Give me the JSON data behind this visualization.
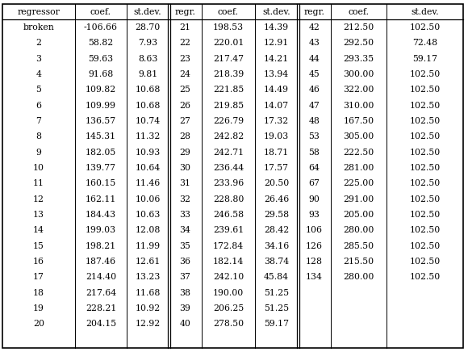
{
  "headers": [
    "regressor",
    "coef.",
    "st.dev.",
    "regr.",
    "coef.",
    "st.dev.",
    "regr.",
    "coef.",
    "st.dev."
  ],
  "col1_data": [
    [
      "broken",
      "-106.66",
      "28.70"
    ],
    [
      "2",
      "58.82",
      "7.93"
    ],
    [
      "3",
      "59.63",
      "8.63"
    ],
    [
      "4",
      "91.68",
      "9.81"
    ],
    [
      "5",
      "109.82",
      "10.68"
    ],
    [
      "6",
      "109.99",
      "10.68"
    ],
    [
      "7",
      "136.57",
      "10.74"
    ],
    [
      "8",
      "145.31",
      "11.32"
    ],
    [
      "9",
      "182.05",
      "10.93"
    ],
    [
      "10",
      "139.77",
      "10.64"
    ],
    [
      "11",
      "160.15",
      "11.46"
    ],
    [
      "12",
      "162.11",
      "10.06"
    ],
    [
      "13",
      "184.43",
      "10.63"
    ],
    [
      "14",
      "199.03",
      "12.08"
    ],
    [
      "15",
      "198.21",
      "11.99"
    ],
    [
      "16",
      "187.46",
      "12.61"
    ],
    [
      "17",
      "214.40",
      "13.23"
    ],
    [
      "18",
      "217.64",
      "11.68"
    ],
    [
      "19",
      "228.21",
      "10.92"
    ],
    [
      "20",
      "204.15",
      "12.92"
    ]
  ],
  "col2_data": [
    [
      "21",
      "198.53",
      "14.39"
    ],
    [
      "22",
      "220.01",
      "12.91"
    ],
    [
      "23",
      "217.47",
      "14.21"
    ],
    [
      "24",
      "218.39",
      "13.94"
    ],
    [
      "25",
      "221.85",
      "14.49"
    ],
    [
      "26",
      "219.85",
      "14.07"
    ],
    [
      "27",
      "226.79",
      "17.32"
    ],
    [
      "28",
      "242.82",
      "19.03"
    ],
    [
      "29",
      "242.71",
      "18.71"
    ],
    [
      "30",
      "236.44",
      "17.57"
    ],
    [
      "31",
      "233.96",
      "20.50"
    ],
    [
      "32",
      "228.80",
      "26.46"
    ],
    [
      "33",
      "246.58",
      "29.58"
    ],
    [
      "34",
      "239.61",
      "28.42"
    ],
    [
      "35",
      "172.84",
      "34.16"
    ],
    [
      "36",
      "182.14",
      "38.74"
    ],
    [
      "37",
      "242.10",
      "45.84"
    ],
    [
      "38",
      "190.00",
      "51.25"
    ],
    [
      "39",
      "206.25",
      "51.25"
    ],
    [
      "40",
      "278.50",
      "59.17"
    ]
  ],
  "col3_data": [
    [
      "42",
      "212.50",
      "102.50"
    ],
    [
      "43",
      "292.50",
      "72.48"
    ],
    [
      "44",
      "293.35",
      "59.17"
    ],
    [
      "45",
      "300.00",
      "102.50"
    ],
    [
      "46",
      "322.00",
      "102.50"
    ],
    [
      "47",
      "310.00",
      "102.50"
    ],
    [
      "48",
      "167.50",
      "102.50"
    ],
    [
      "53",
      "305.00",
      "102.50"
    ],
    [
      "58",
      "222.50",
      "102.50"
    ],
    [
      "64",
      "281.00",
      "102.50"
    ],
    [
      "67",
      "225.00",
      "102.50"
    ],
    [
      "90",
      "291.00",
      "102.50"
    ],
    [
      "93",
      "205.00",
      "102.50"
    ],
    [
      "106",
      "280.00",
      "102.50"
    ],
    [
      "126",
      "285.50",
      "102.50"
    ],
    [
      "128",
      "215.50",
      "102.50"
    ],
    [
      "134",
      "280.00",
      "102.50"
    ],
    [
      "",
      "",
      ""
    ],
    [
      "",
      "",
      ""
    ],
    [
      "",
      "",
      ""
    ]
  ],
  "background_color": "#ffffff",
  "text_color": "#000000",
  "border_color": "#000000",
  "font_size": 7.8,
  "fig_width": 5.8,
  "fig_height": 4.36,
  "dpi": 100
}
